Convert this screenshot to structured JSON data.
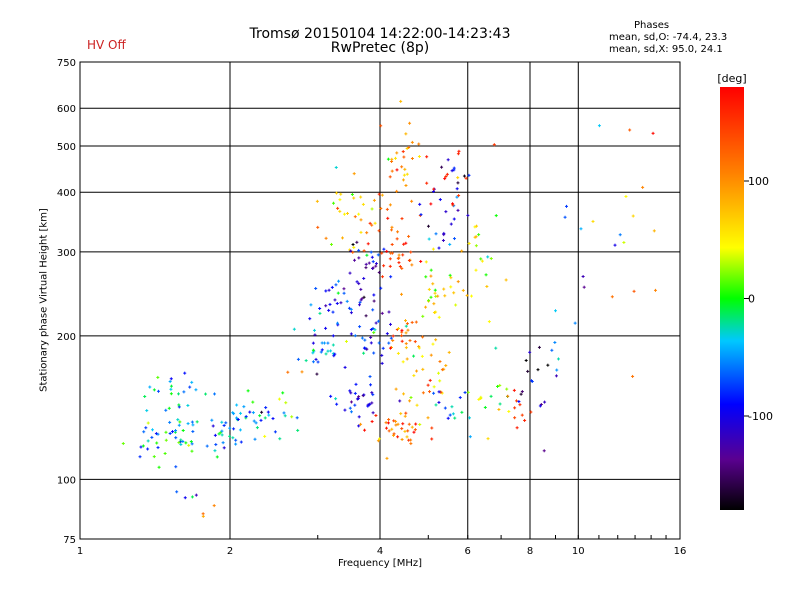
{
  "header": {
    "title_line1": "Tromsø 20150104 14:22:00-14:23:43",
    "title_line2": "RwPretec (8p)",
    "hv_status": "HV Off",
    "phases_title": "Phases",
    "phases_o": "mean, sd,O: -74.4, 23.3",
    "phases_x": "mean, sd,X:  95.0, 24.1"
  },
  "colors": {
    "hv_status": "#cc2222"
  },
  "chart_data": {
    "type": "scatter",
    "xlabel": "Frequency [MHz]",
    "ylabel": "Stationary phase Virtual Height [km]",
    "x_scale": "log2",
    "y_scale": "log",
    "xlim": [
      1,
      16
    ],
    "ylim": [
      75,
      750
    ],
    "x_ticks": [
      1,
      2,
      4,
      6,
      8,
      10,
      16
    ],
    "x_tick_labels": [
      "1",
      "2",
      "4",
      "6",
      "8",
      "10",
      "16"
    ],
    "y_ticks": [
      75,
      100,
      200,
      300,
      400,
      500,
      600,
      750
    ],
    "y_tick_labels": [
      "75",
      "100",
      "200",
      "300",
      "400",
      "500",
      "600",
      "750"
    ],
    "grid": true,
    "colorbar": {
      "label": "[deg]",
      "range": [
        -180,
        180
      ],
      "ticks": [
        -100,
        0,
        100
      ],
      "tick_labels": [
        "-100",
        "0",
        "100"
      ]
    },
    "clusters": [
      {
        "f": 1.55,
        "h": 150,
        "phase": -30,
        "n": 25,
        "sf": 0.07,
        "sh": 0.07
      },
      {
        "f": 1.45,
        "h": 120,
        "phase": -40,
        "n": 35,
        "sf": 0.1,
        "sh": 0.06
      },
      {
        "f": 1.85,
        "h": 125,
        "phase": -40,
        "n": 35,
        "sf": 0.1,
        "sh": 0.05
      },
      {
        "f": 2.3,
        "h": 135,
        "phase": -45,
        "n": 30,
        "sf": 0.1,
        "sh": 0.05
      },
      {
        "f": 2.55,
        "h": 155,
        "phase": 20,
        "n": 8,
        "sf": 0.08,
        "sh": 0.1
      },
      {
        "f": 1.65,
        "h": 92,
        "phase": -90,
        "n": 4,
        "sf": 0.03,
        "sh": 0.02
      },
      {
        "f": 1.85,
        "h": 85,
        "phase": 120,
        "n": 3,
        "sf": 0.03,
        "sh": 0.02
      },
      {
        "f": 3.1,
        "h": 185,
        "phase": -60,
        "n": 25,
        "sf": 0.06,
        "sh": 0.05
      },
      {
        "f": 3.3,
        "h": 230,
        "phase": -80,
        "n": 30,
        "sf": 0.06,
        "sh": 0.07
      },
      {
        "f": 3.4,
        "h": 360,
        "phase": 60,
        "n": 30,
        "sf": 0.07,
        "sh": 0.1
      },
      {
        "f": 3.6,
        "h": 150,
        "phase": -100,
        "n": 30,
        "sf": 0.06,
        "sh": 0.07
      },
      {
        "f": 3.7,
        "h": 260,
        "phase": -120,
        "n": 35,
        "sf": 0.06,
        "sh": 0.1
      },
      {
        "f": 3.9,
        "h": 200,
        "phase": -70,
        "n": 30,
        "sf": 0.06,
        "sh": 0.06
      },
      {
        "f": 4.3,
        "h": 130,
        "phase": 120,
        "n": 40,
        "sf": 0.07,
        "sh": 0.04
      },
      {
        "f": 4.4,
        "h": 200,
        "phase": 110,
        "n": 25,
        "sf": 0.05,
        "sh": 0.05
      },
      {
        "f": 4.3,
        "h": 300,
        "phase": 130,
        "n": 40,
        "sf": 0.07,
        "sh": 0.12
      },
      {
        "f": 4.4,
        "h": 480,
        "phase": 100,
        "n": 30,
        "sf": 0.07,
        "sh": 0.12
      },
      {
        "f": 5.0,
        "h": 170,
        "phase": 80,
        "n": 30,
        "sf": 0.06,
        "sh": 0.08
      },
      {
        "f": 5.2,
        "h": 240,
        "phase": 40,
        "n": 30,
        "sf": 0.06,
        "sh": 0.1
      },
      {
        "f": 5.4,
        "h": 380,
        "phase": -110,
        "n": 30,
        "sf": 0.06,
        "sh": 0.12
      },
      {
        "f": 5.6,
        "h": 140,
        "phase": -60,
        "n": 15,
        "sf": 0.04,
        "sh": 0.06
      },
      {
        "f": 6.3,
        "h": 300,
        "phase": 40,
        "n": 20,
        "sf": 0.06,
        "sh": 0.15
      },
      {
        "f": 6.5,
        "h": 150,
        "phase": 10,
        "n": 15,
        "sf": 0.06,
        "sh": 0.1
      },
      {
        "f": 7.7,
        "h": 140,
        "phase": 150,
        "n": 10,
        "sf": 0.04,
        "sh": 0.06
      },
      {
        "f": 8.0,
        "h": 165,
        "phase": -130,
        "n": 12,
        "sf": 0.04,
        "sh": 0.1
      },
      {
        "f": 8.8,
        "h": 160,
        "phase": -100,
        "n": 8,
        "sf": 0.05,
        "sh": 0.15
      },
      {
        "f": 10.5,
        "h": 400,
        "phase": -70,
        "n": 10,
        "sf": 0.1,
        "sh": 0.3
      },
      {
        "f": 12.5,
        "h": 300,
        "phase": 100,
        "n": 12,
        "sf": 0.08,
        "sh": 0.35
      },
      {
        "f": 5.5,
        "h": 420,
        "phase": 150,
        "n": 15,
        "sf": 0.08,
        "sh": 0.15
      }
    ]
  }
}
